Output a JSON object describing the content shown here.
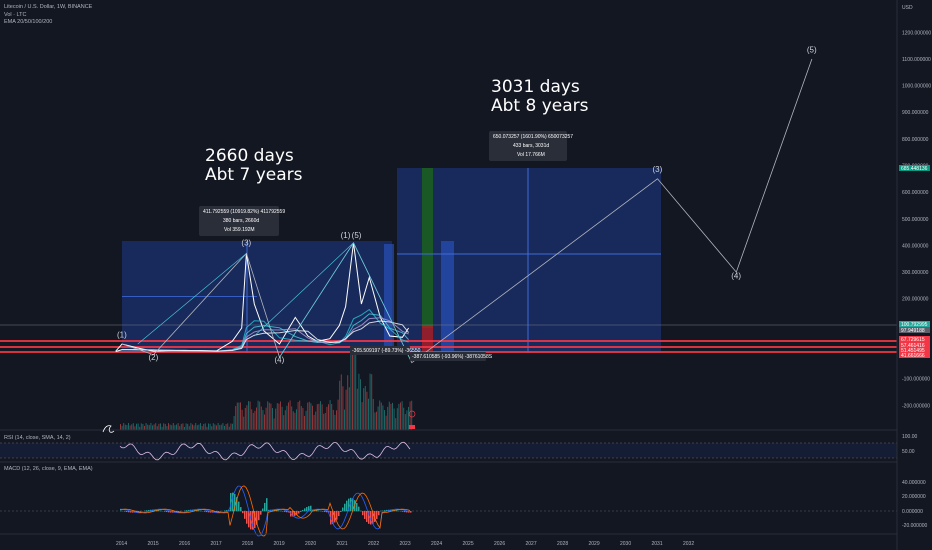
{
  "header": {
    "symbol_line": "Litecoin / U.S. Dollar, 1W, BINANCE",
    "vol_line": "Vol · LTC",
    "ema_line": "EMA 20/50/100/200"
  },
  "axis": {
    "currency": "USD",
    "price_ticks": [
      "1200.000000",
      "1100.000000",
      "1000.000000",
      "900.000000",
      "800.000000",
      "700.000000",
      "600.000000",
      "500.000000",
      "400.000000",
      "300.000000",
      "200.000000",
      "100.000000",
      "-100.000000",
      "-200.000000"
    ],
    "price_values": [
      1200,
      1100,
      1000,
      900,
      800,
      700,
      600,
      500,
      400,
      300,
      200,
      100,
      -100,
      -200
    ],
    "year_ticks": [
      "2014",
      "2015",
      "2016",
      "2017",
      "2018",
      "2019",
      "2020",
      "2021",
      "2022",
      "2023",
      "2024",
      "2025",
      "2026",
      "2027",
      "2028",
      "2029",
      "2030",
      "2031",
      "2032"
    ],
    "rsi_ticks": [
      "100.00",
      "50.00"
    ],
    "macd_ticks": [
      "40.000000",
      "20.000000",
      "0.000000",
      "-20.000000"
    ]
  },
  "price_tags": [
    {
      "text": "685.448136",
      "color": "#089981"
    },
    {
      "text": "100.792995",
      "color": "#26a69a"
    },
    {
      "text": "97.949188",
      "color": "#5d606b"
    },
    {
      "text": "67.729615",
      "color": "#f23645"
    },
    {
      "text": "57.461416",
      "color": "#f23645"
    },
    {
      "text": "51.451495",
      "color": "#f23645"
    },
    {
      "text": "41.661666",
      "color": "#f23645"
    }
  ],
  "annotations": {
    "left_big_line1": "2660 days",
    "left_big_line2": "Abt 7 years",
    "right_big_line1": "3031 days",
    "right_big_line2": "Abt 8 years",
    "left_tip": [
      "411.792559 (10919.82%) 411792559",
      "380 bars, 2660d",
      "Vol 359.192M"
    ],
    "right_tip": [
      "650.073257 (1601.90%) 650073257",
      "433 bars, 3031d",
      "Vol 17.766M"
    ],
    "drop_tip_1": "-365.509197 (-89.73%) -36550",
    "drop_tip_2": "-387.610585 (-93.96%) -38761058S",
    "waves": [
      "(1)",
      "(2)",
      "(3)",
      "(4)",
      "(5)",
      "(3)",
      "(4)",
      "(5)",
      "(1)"
    ]
  },
  "rsi": {
    "label": "RSI (14, close, SMA, 14, 2)"
  },
  "macd": {
    "label": "MACD (12, 26, close, 9, EMA, EMA)"
  },
  "colors": {
    "bg": "#131722",
    "up": "#26a69a",
    "down": "#ef5350",
    "box": "#1e3a8a",
    "line": "#b2b5be",
    "red_line": "#f23645"
  },
  "chart_data": {
    "type": "line",
    "title": "Litecoin / U.S. Dollar, 1W, BINANCE",
    "x_unit": "year",
    "ylim": [
      -250,
      1250
    ],
    "price_path": {
      "x": [
        2013.8,
        2014.0,
        2014.5,
        2015.0,
        2015.5,
        2016.0,
        2016.5,
        2017.0,
        2017.5,
        2017.8,
        2017.95,
        2018.2,
        2018.5,
        2019.0,
        2019.5,
        2019.9,
        2020.2,
        2020.6,
        2020.9,
        2021.1,
        2021.35,
        2021.6,
        2021.85,
        2022.2,
        2022.5,
        2022.9,
        2023.1
      ],
      "y": [
        3,
        30,
        15,
        3,
        5,
        4,
        5,
        4,
        40,
        90,
        370,
        180,
        80,
        30,
        130,
        60,
        40,
        50,
        100,
        170,
        410,
        180,
        280,
        130,
        60,
        55,
        90
      ]
    },
    "wave_projection": {
      "x": [
        2014.0,
        2015.0,
        2017.95,
        2019.0,
        2021.35,
        2023.2,
        2031.0,
        2033.5,
        2035.9
      ],
      "y": [
        30,
        -10,
        370,
        -20,
        410,
        -40,
        650,
        300,
        1100
      ],
      "labels": [
        "(1)",
        "(2)",
        "(3)",
        "(4)",
        "(5)",
        "",
        "(3)",
        "(4)",
        "(5)"
      ]
    }
  }
}
